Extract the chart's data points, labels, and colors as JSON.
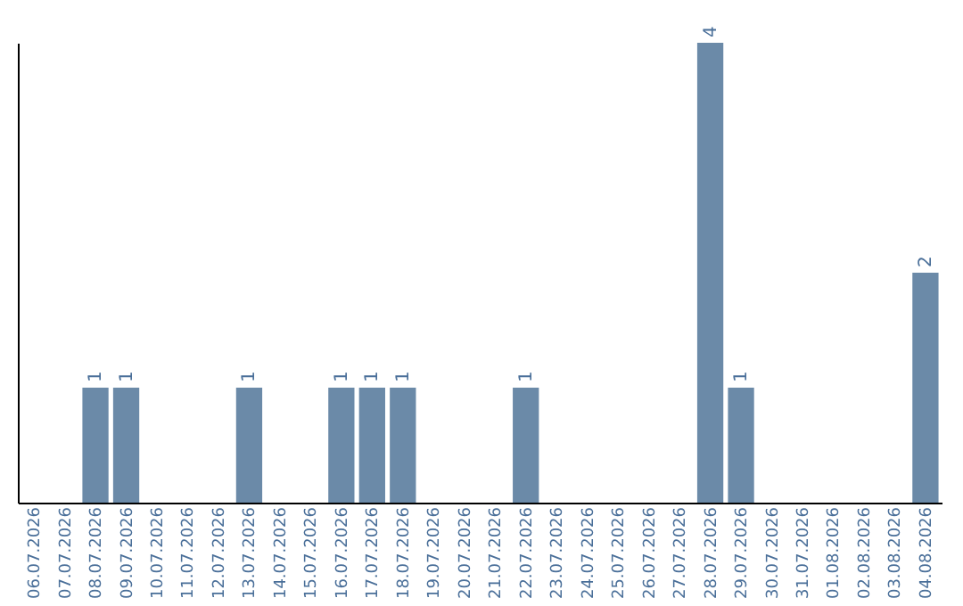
{
  "chart_data": {
    "type": "bar",
    "categories": [
      "06.07.2026",
      "07.07.2026",
      "08.07.2026",
      "09.07.2026",
      "10.07.2026",
      "11.07.2026",
      "12.07.2026",
      "13.07.2026",
      "14.07.2026",
      "15.07.2026",
      "16.07.2026",
      "17.07.2026",
      "18.07.2026",
      "19.07.2026",
      "20.07.2026",
      "21.07.2026",
      "22.07.2026",
      "23.07.2026",
      "24.07.2026",
      "25.07.2026",
      "26.07.2026",
      "27.07.2026",
      "28.07.2026",
      "29.07.2026",
      "30.07.2026",
      "31.07.2026",
      "01.08.2026",
      "02.08.2026",
      "03.08.2026",
      "04.08.2026"
    ],
    "values": [
      null,
      null,
      1,
      1,
      null,
      null,
      null,
      1,
      null,
      null,
      1,
      1,
      1,
      null,
      null,
      null,
      1,
      null,
      null,
      null,
      null,
      null,
      4,
      1,
      null,
      null,
      null,
      null,
      null,
      2
    ],
    "color": "#6b8aa8",
    "ylim": [
      0,
      4
    ],
    "data_labels": true,
    "tick_labels": "x"
  }
}
